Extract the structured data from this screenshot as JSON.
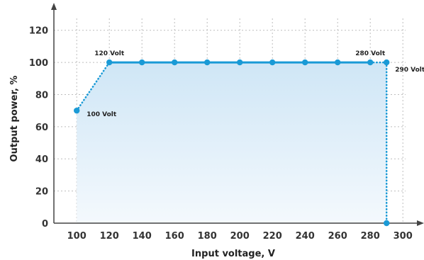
{
  "chart_data": {
    "type": "line",
    "title": "",
    "xlabel": "Input voltage, V",
    "ylabel": "Output power, %",
    "xlim": [
      86,
      306
    ],
    "ylim": [
      0,
      130
    ],
    "x_ticks": [
      100,
      120,
      140,
      160,
      180,
      200,
      220,
      240,
      260,
      280,
      300
    ],
    "y_ticks": [
      0,
      20,
      40,
      60,
      80,
      100,
      120
    ],
    "grid": true,
    "legend": "none",
    "series": [
      {
        "values_x": [
          100,
          120,
          140,
          160,
          180,
          200,
          220,
          240,
          260,
          280,
          290,
          290
        ],
        "values_y": [
          70,
          100,
          100,
          100,
          100,
          100,
          100,
          100,
          100,
          100,
          100,
          0
        ]
      }
    ],
    "annotations": [
      {
        "text": "100 Volt",
        "x": 100,
        "y": 70
      },
      {
        "text": "120 Volt",
        "x": 120,
        "y": 100
      },
      {
        "text": "280 Volt",
        "x": 280,
        "y": 100
      },
      {
        "text": "290 Volt",
        "x": 290,
        "y": 100
      }
    ],
    "colors": {
      "line": "#1a9ad6",
      "marker": "#1a9ad6",
      "fill_top": "#cfe6f6",
      "fill_bottom": "#f4f9fd",
      "grid": "#bdbdbd",
      "axis": "#444444"
    }
  }
}
